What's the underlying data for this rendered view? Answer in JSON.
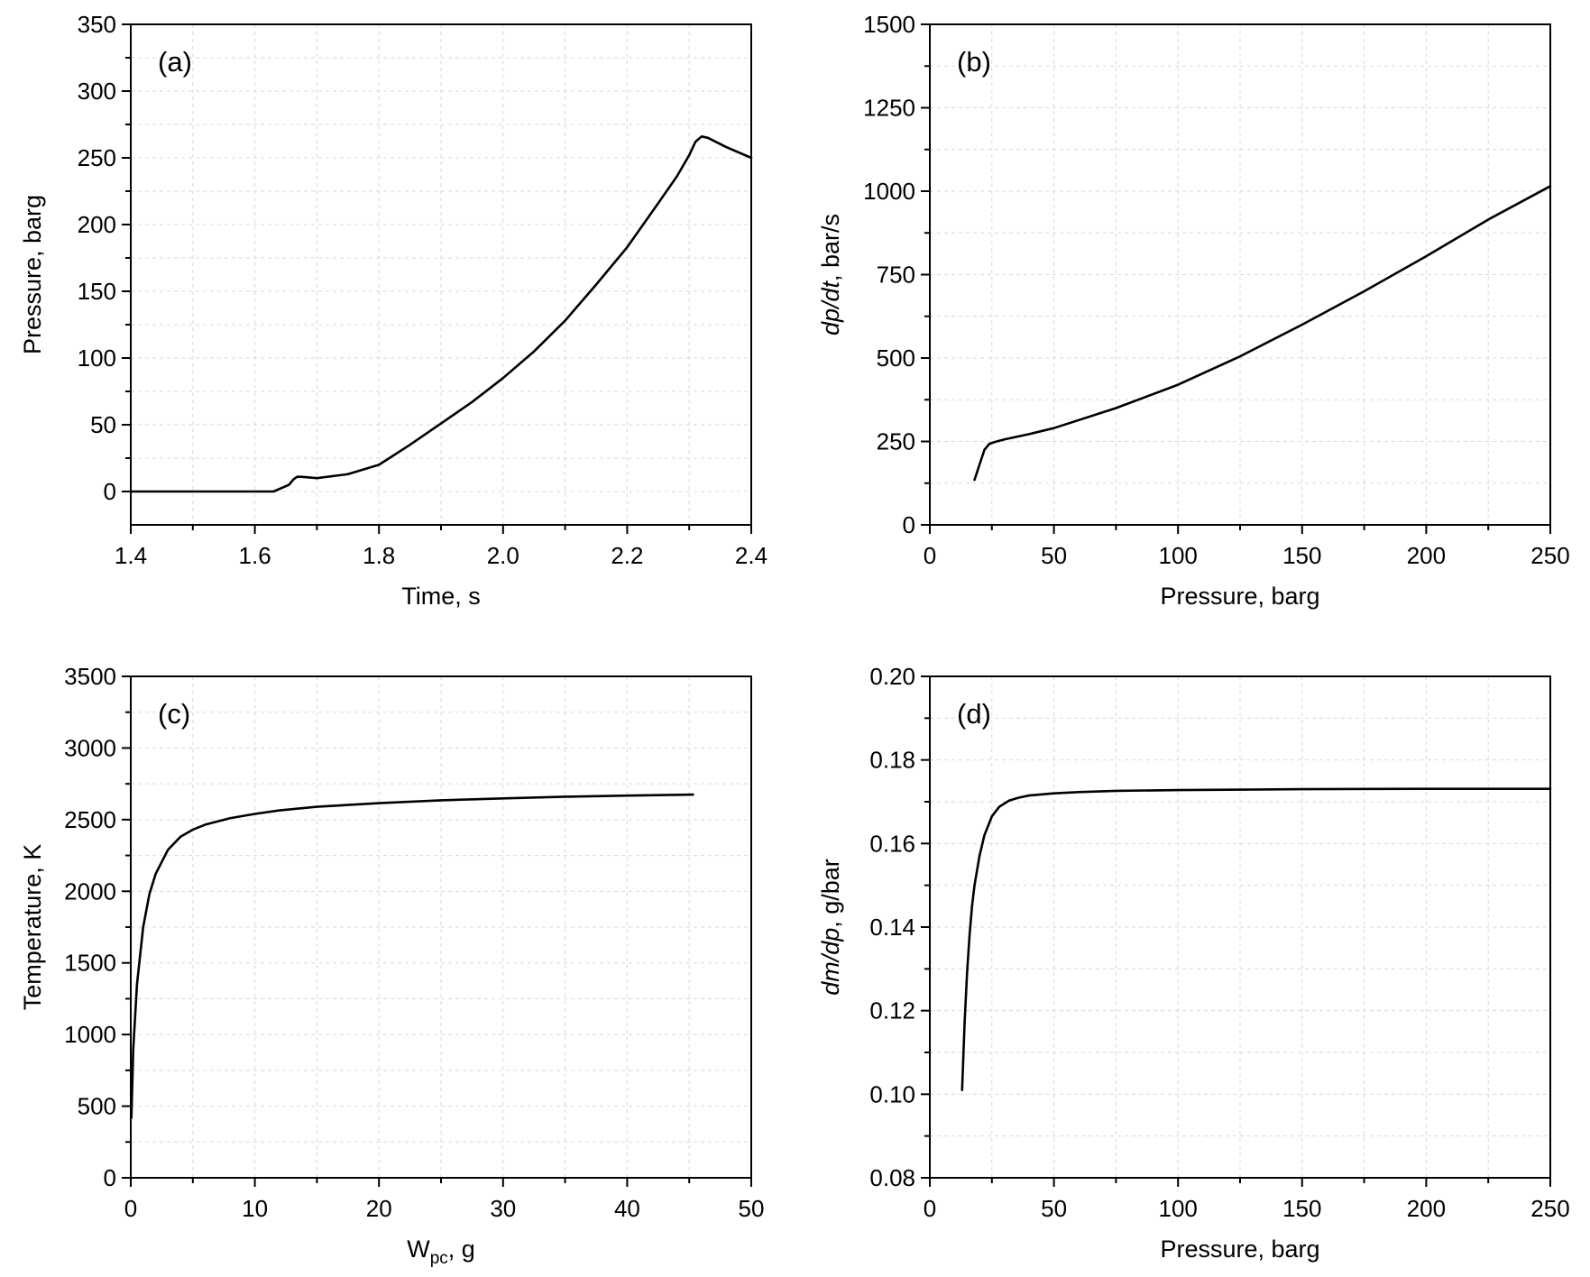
{
  "chart_data": [
    {
      "type": "line",
      "panel_label": "(a)",
      "xlabel": "Time, s",
      "ylabel": "Pressure, barg",
      "xlim": [
        1.4,
        2.4
      ],
      "ylim": [
        -25,
        350
      ],
      "xticks": [
        1.4,
        1.6,
        1.8,
        2.0,
        2.2,
        2.4
      ],
      "xtick_labels": [
        "1.4",
        "1.6",
        "1.8",
        "2.0",
        "2.2",
        "2.4"
      ],
      "yticks": [
        0,
        50,
        100,
        150,
        200,
        250,
        300,
        350
      ],
      "ytick_labels": [
        "0",
        "50",
        "100",
        "150",
        "200",
        "250",
        "300",
        "350"
      ],
      "grid": true,
      "series": [
        {
          "x": [
            1.4,
            1.5,
            1.6,
            1.63,
            1.645,
            1.655,
            1.662,
            1.668,
            1.675,
            1.7,
            1.75,
            1.8,
            1.85,
            1.9,
            1.95,
            2.0,
            2.05,
            2.1,
            2.15,
            2.2,
            2.25,
            2.28,
            2.3,
            2.31,
            2.32,
            2.33,
            2.36,
            2.4
          ],
          "y": [
            0,
            0,
            0,
            0,
            3,
            5,
            9,
            11,
            11,
            10,
            13,
            20,
            35,
            51,
            67,
            85,
            105,
            128,
            155,
            183,
            216,
            236,
            252,
            262,
            266,
            265,
            258,
            250
          ]
        }
      ]
    },
    {
      "type": "line",
      "panel_label": "(b)",
      "xlabel": "Pressure, barg",
      "ylabel": "dp/dt, bar/s",
      "xlim": [
        0,
        250
      ],
      "ylim": [
        0,
        1500
      ],
      "xticks": [
        0,
        50,
        100,
        150,
        200,
        250
      ],
      "xtick_labels": [
        "0",
        "50",
        "100",
        "150",
        "200",
        "250"
      ],
      "yticks": [
        0,
        250,
        500,
        750,
        1000,
        1250,
        1500
      ],
      "ytick_labels": [
        "0",
        "250",
        "500",
        "750",
        "1000",
        "1250",
        "1500"
      ],
      "grid": true,
      "series": [
        {
          "x": [
            18,
            20,
            22,
            24,
            26,
            30,
            40,
            50,
            75,
            100,
            125,
            150,
            175,
            200,
            225,
            250
          ],
          "y": [
            135,
            180,
            225,
            243,
            248,
            256,
            272,
            290,
            350,
            420,
            505,
            600,
            700,
            805,
            915,
            1015
          ]
        }
      ]
    },
    {
      "type": "line",
      "panel_label": "(c)",
      "xlabel": "W_pc, g",
      "ylabel": "Temperature, K",
      "xlim": [
        0,
        50
      ],
      "ylim": [
        0,
        3500
      ],
      "xticks": [
        0,
        10,
        20,
        30,
        40,
        50
      ],
      "xtick_labels": [
        "0",
        "10",
        "20",
        "30",
        "40",
        "50"
      ],
      "yticks": [
        0,
        500,
        1000,
        1500,
        2000,
        2500,
        3000,
        3500
      ],
      "ytick_labels": [
        "0",
        "500",
        "1000",
        "1500",
        "2000",
        "2500",
        "3000",
        "3500"
      ],
      "grid": true,
      "series": [
        {
          "x": [
            0.05,
            0.2,
            0.5,
            1,
            1.5,
            2,
            3,
            4,
            5,
            6,
            8,
            10,
            12,
            15,
            20,
            25,
            30,
            35,
            40,
            45.3
          ],
          "y": [
            420,
            900,
            1350,
            1750,
            1980,
            2120,
            2290,
            2380,
            2430,
            2465,
            2510,
            2540,
            2565,
            2590,
            2615,
            2635,
            2648,
            2660,
            2668,
            2675
          ]
        }
      ]
    },
    {
      "type": "line",
      "panel_label": "(d)",
      "xlabel": "Pressure, barg",
      "ylabel": "dm/dp, g/bar",
      "xlim": [
        0,
        250
      ],
      "ylim": [
        0.08,
        0.2
      ],
      "xticks": [
        0,
        50,
        100,
        150,
        200,
        250
      ],
      "xtick_labels": [
        "0",
        "50",
        "100",
        "150",
        "200",
        "250"
      ],
      "yticks": [
        0.08,
        0.1,
        0.12,
        0.14,
        0.16,
        0.18,
        0.2
      ],
      "ytick_labels": [
        "0.08",
        "0.10",
        "0.12",
        "0.14",
        "0.16",
        "0.18",
        "0.20"
      ],
      "grid": true,
      "series": [
        {
          "x": [
            13,
            14,
            15,
            16,
            17,
            18,
            20,
            22,
            25,
            28,
            32,
            36,
            40,
            50,
            60,
            75,
            100,
            150,
            200,
            250
          ],
          "y": [
            0.101,
            0.117,
            0.129,
            0.138,
            0.145,
            0.15,
            0.157,
            0.162,
            0.1665,
            0.1688,
            0.1703,
            0.171,
            0.1715,
            0.172,
            0.1723,
            0.1726,
            0.1728,
            0.173,
            0.1731,
            0.1731
          ]
        }
      ]
    }
  ]
}
